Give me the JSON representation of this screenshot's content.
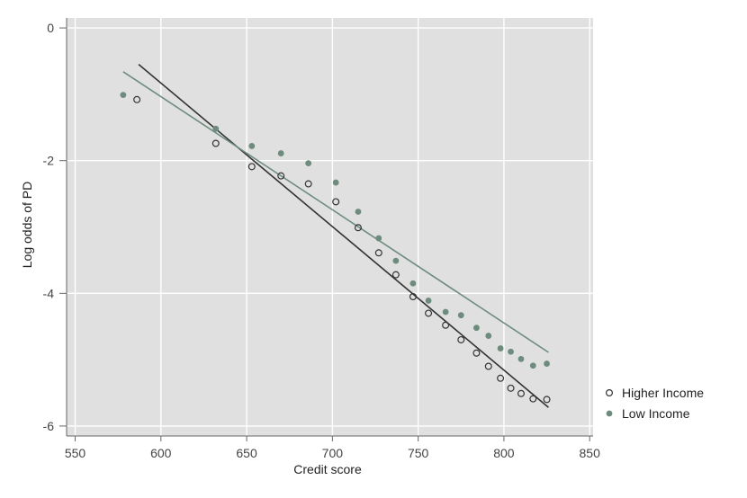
{
  "chart_data": {
    "type": "scatter",
    "title": "",
    "xlabel": "Credit score",
    "ylabel": "Log odds of PD",
    "xlim": [
      545,
      852
    ],
    "ylim": [
      -6.15,
      0.15
    ],
    "xticks": [
      550,
      600,
      650,
      700,
      750,
      800,
      850
    ],
    "yticks": [
      0,
      -2,
      -4,
      -6
    ],
    "grid": true,
    "legend_position": "right",
    "series": [
      {
        "name": "Higher Income",
        "marker": "hollow-circle",
        "color": "#333333",
        "points": [
          [
            586,
            -1.08
          ],
          [
            632,
            -1.74
          ],
          [
            653,
            -2.09
          ],
          [
            670,
            -2.23
          ],
          [
            686,
            -2.35
          ],
          [
            702,
            -2.62
          ],
          [
            715,
            -3.01
          ],
          [
            727,
            -3.39
          ],
          [
            737,
            -3.72
          ],
          [
            747,
            -4.05
          ],
          [
            756,
            -4.3
          ],
          [
            766,
            -4.48
          ],
          [
            775,
            -4.7
          ],
          [
            784,
            -4.9
          ],
          [
            791,
            -5.1
          ],
          [
            798,
            -5.28
          ],
          [
            804,
            -5.43
          ],
          [
            810,
            -5.51
          ],
          [
            817,
            -5.59
          ],
          [
            825,
            -5.6
          ]
        ],
        "fit": {
          "x": [
            587,
            826
          ],
          "y": [
            -0.55,
            -5.72
          ]
        }
      },
      {
        "name": "Low Income",
        "marker": "filled-circle",
        "color": "#6e8c7e",
        "points": [
          [
            578,
            -1.01
          ],
          [
            632,
            -1.52
          ],
          [
            653,
            -1.78
          ],
          [
            670,
            -1.89
          ],
          [
            686,
            -2.04
          ],
          [
            702,
            -2.33
          ],
          [
            715,
            -2.77
          ],
          [
            727,
            -3.17
          ],
          [
            737,
            -3.51
          ],
          [
            747,
            -3.85
          ],
          [
            756,
            -4.11
          ],
          [
            766,
            -4.28
          ],
          [
            775,
            -4.33
          ],
          [
            784,
            -4.52
          ],
          [
            791,
            -4.64
          ],
          [
            798,
            -4.83
          ],
          [
            804,
            -4.88
          ],
          [
            810,
            -4.99
          ],
          [
            817,
            -5.09
          ],
          [
            825,
            -5.06
          ]
        ],
        "fit": {
          "x": [
            578,
            826
          ],
          "y": [
            -0.66,
            -4.89
          ]
        }
      }
    ]
  }
}
